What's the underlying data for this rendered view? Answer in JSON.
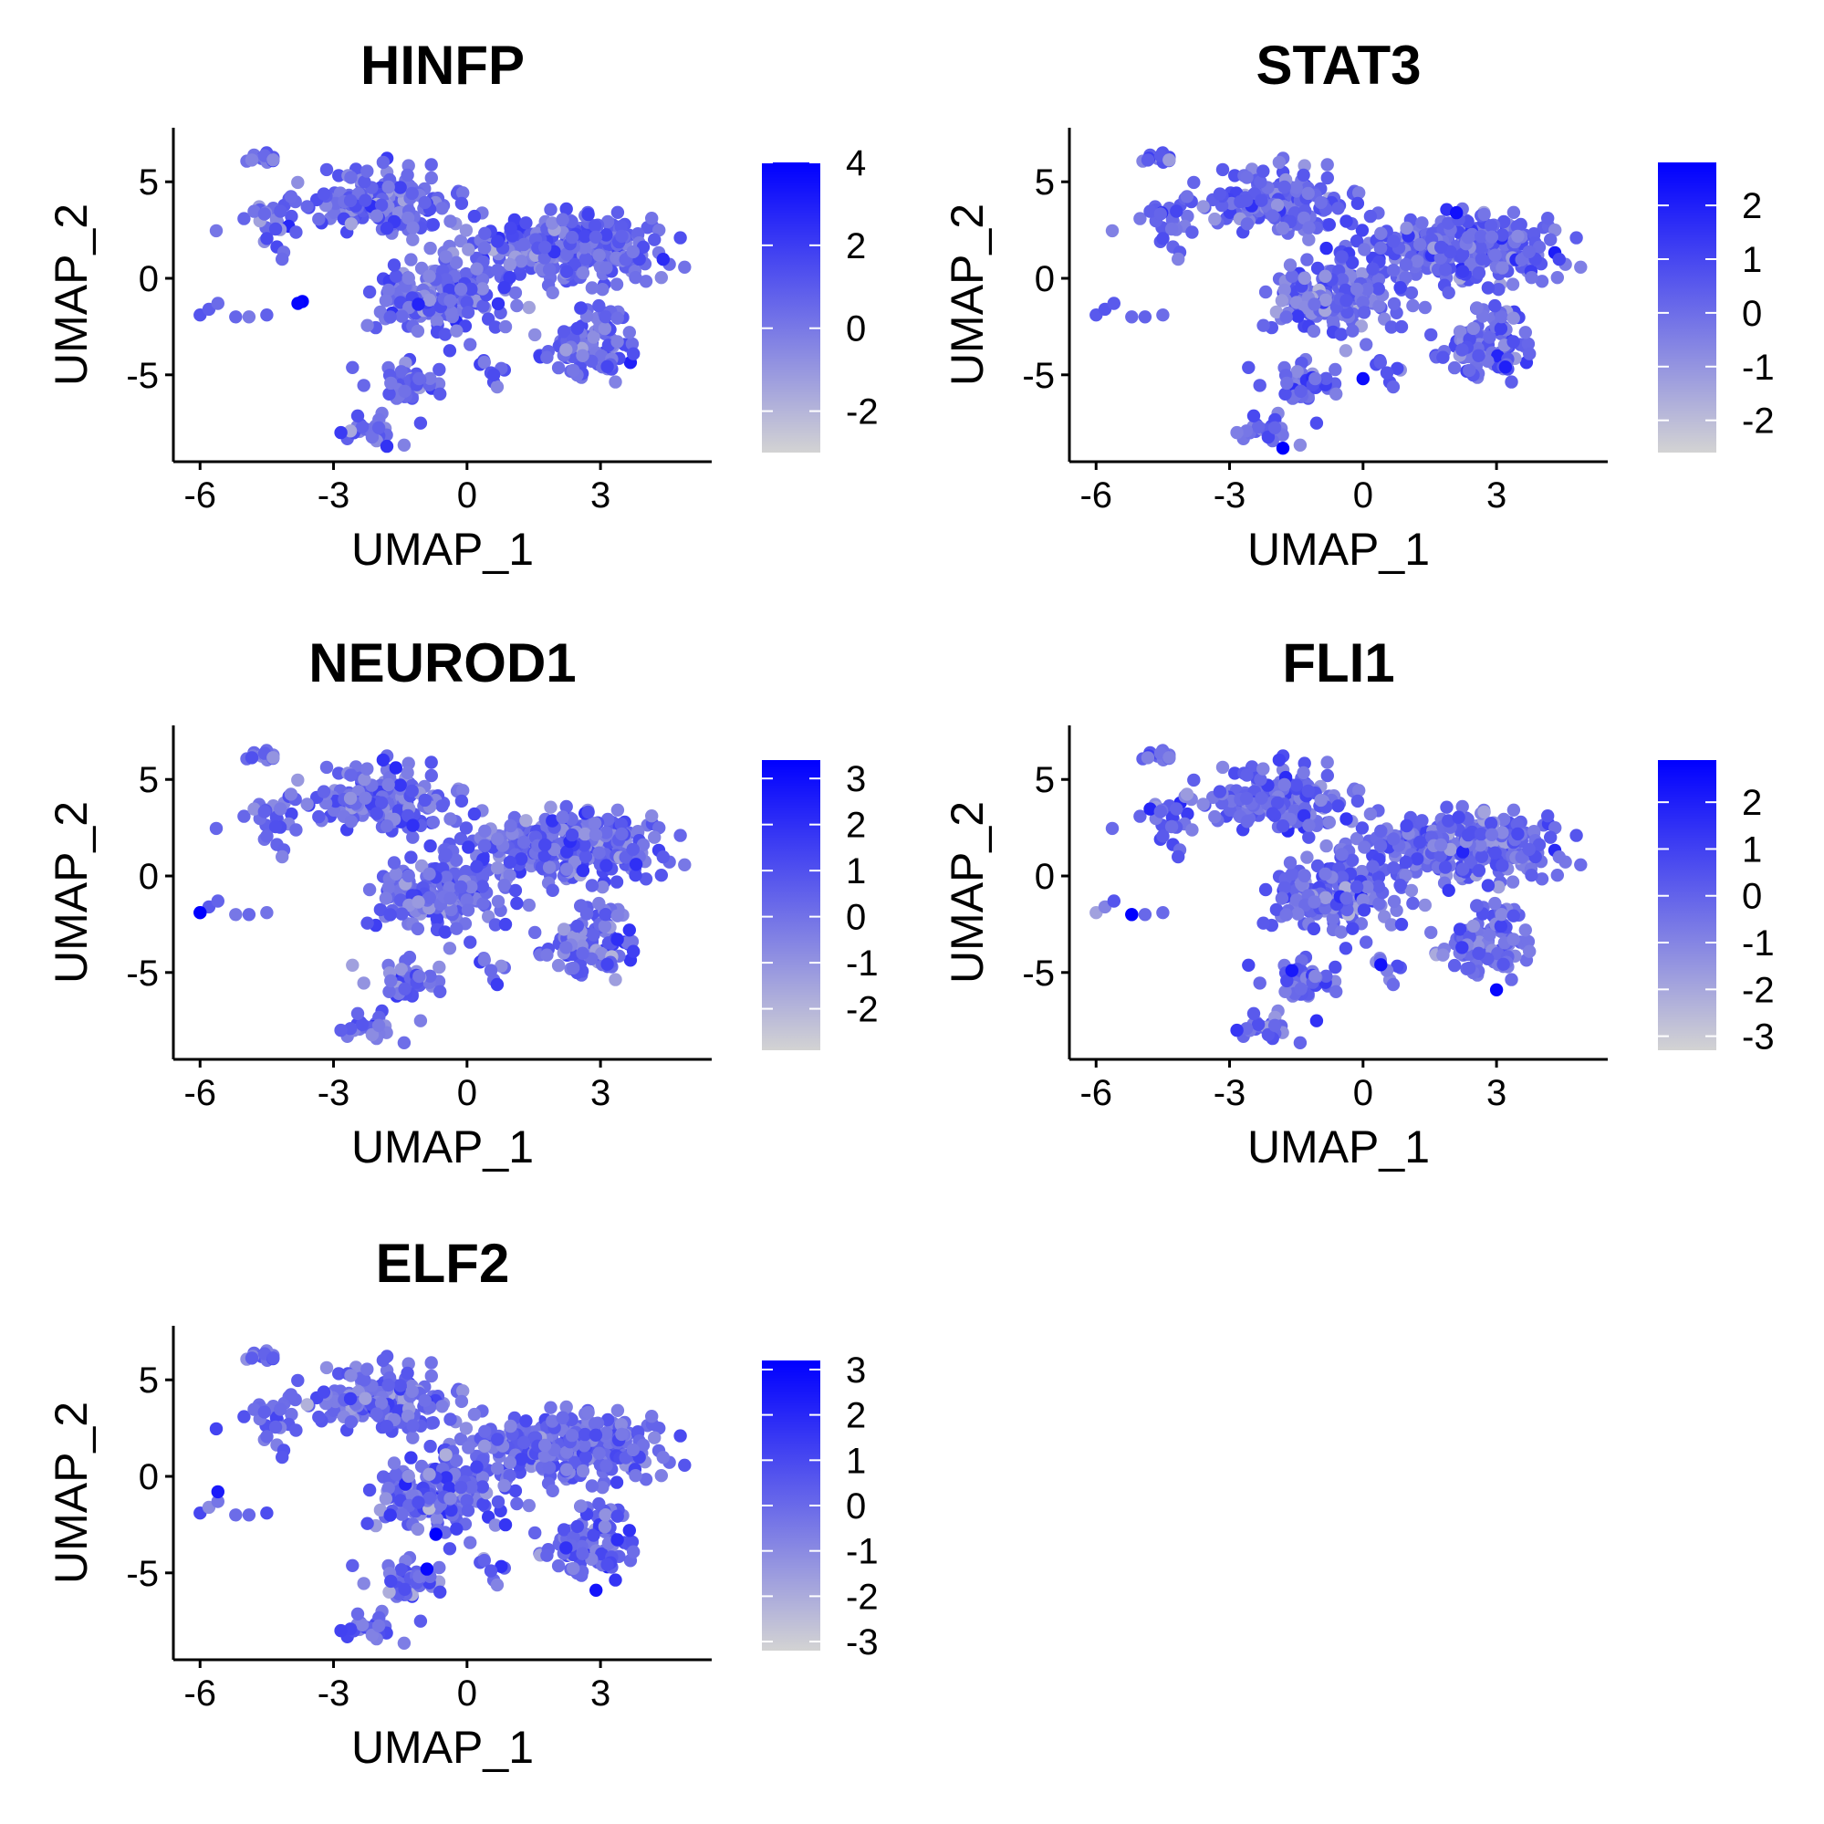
{
  "colors": {
    "low": "#d3d3d3",
    "high": "#0000ff",
    "axis": "#000000"
  },
  "chart_data": [
    {
      "type": "scatter",
      "subtype": "umap-feature-plot",
      "title": "HINFP",
      "xlabel": "UMAP_1",
      "ylabel": "UMAP_2",
      "xlim": [
        -6.6,
        5.5
      ],
      "ylim": [
        -9.5,
        7.8
      ],
      "xticks": [
        -6,
        -3,
        0,
        3
      ],
      "yticks": [
        -5,
        0,
        5
      ],
      "xtick_labels": [
        "-6",
        "-3",
        "0",
        "3"
      ],
      "ytick_labels": [
        "-5",
        "0",
        "5"
      ],
      "color_scale": {
        "min": -3.0,
        "max": 4.0,
        "ticks": [
          4,
          2,
          0,
          -2
        ],
        "tick_labels": [
          "4",
          "2",
          "0",
          "-2"
        ]
      },
      "legend_position": "right",
      "seed": 11,
      "highlights": [
        [
          -3.7,
          -1.2,
          4.0
        ],
        [
          -3.8,
          -1.3,
          3.8
        ],
        [
          -1.8,
          -8.7,
          2.3
        ],
        [
          0.6,
          -5.0,
          1.5
        ]
      ]
    },
    {
      "type": "scatter",
      "subtype": "umap-feature-plot",
      "title": "STAT3",
      "xlabel": "UMAP_1",
      "ylabel": "UMAP_2",
      "xlim": [
        -6.6,
        5.5
      ],
      "ylim": [
        -9.5,
        7.8
      ],
      "xticks": [
        -6,
        -3,
        0,
        3
      ],
      "yticks": [
        -5,
        0,
        5
      ],
      "xtick_labels": [
        "-6",
        "-3",
        "0",
        "3"
      ],
      "ytick_labels": [
        "-5",
        "0",
        "5"
      ],
      "color_scale": {
        "min": -2.6,
        "max": 2.8,
        "ticks": [
          2,
          1,
          0,
          -1,
          -2
        ],
        "tick_labels": [
          "2",
          "1",
          "0",
          "-1",
          "-2"
        ]
      },
      "legend_position": "right",
      "seed": 23,
      "highlights": [
        [
          -1.8,
          -8.8,
          2.8
        ],
        [
          0.0,
          -5.2,
          2.5
        ],
        [
          2.1,
          3.4,
          2.4
        ],
        [
          3.2,
          -4.6,
          2.0
        ]
      ]
    },
    {
      "type": "scatter",
      "subtype": "umap-feature-plot",
      "title": "NEUROD1",
      "xlabel": "UMAP_1",
      "ylabel": "UMAP_2",
      "xlim": [
        -6.6,
        5.5
      ],
      "ylim": [
        -9.5,
        7.8
      ],
      "xticks": [
        -6,
        -3,
        0,
        3
      ],
      "yticks": [
        -5,
        0,
        5
      ],
      "xtick_labels": [
        "-6",
        "-3",
        "0",
        "3"
      ],
      "ytick_labels": [
        "-5",
        "0",
        "5"
      ],
      "color_scale": {
        "min": -2.9,
        "max": 3.4,
        "ticks": [
          3,
          2,
          1,
          0,
          -1,
          -2
        ],
        "tick_labels": [
          "3",
          "2",
          "1",
          "0",
          "-1",
          "-2"
        ]
      },
      "legend_position": "right",
      "seed": 37,
      "highlights": [
        [
          -6.0,
          -1.9,
          3.4
        ],
        [
          -1.6,
          5.6,
          2.2
        ],
        [
          3.8,
          0.6,
          2.0
        ]
      ]
    },
    {
      "type": "scatter",
      "subtype": "umap-feature-plot",
      "title": "FLI1",
      "xlabel": "UMAP_1",
      "ylabel": "UMAP_2",
      "xlim": [
        -6.6,
        5.5
      ],
      "ylim": [
        -9.5,
        7.8
      ],
      "xticks": [
        -6,
        -3,
        0,
        3
      ],
      "yticks": [
        -5,
        0,
        5
      ],
      "xtick_labels": [
        "-6",
        "-3",
        "0",
        "3"
      ],
      "ytick_labels": [
        "-5",
        "0",
        "5"
      ],
      "color_scale": {
        "min": -3.3,
        "max": 2.9,
        "ticks": [
          2,
          1,
          0,
          -1,
          -2,
          -3
        ],
        "tick_labels": [
          "2",
          "1",
          "0",
          "-1",
          "-2",
          "-3"
        ]
      },
      "legend_position": "right",
      "seed": 53,
      "highlights": [
        [
          -5.2,
          -2.0,
          2.9
        ],
        [
          3.0,
          -5.9,
          2.7
        ],
        [
          0.4,
          -4.6,
          2.4
        ],
        [
          -1.6,
          -4.9,
          2.2
        ]
      ]
    },
    {
      "type": "scatter",
      "subtype": "umap-feature-plot",
      "title": "ELF2",
      "xlabel": "UMAP_1",
      "ylabel": "UMAP_2",
      "xlim": [
        -6.6,
        5.5
      ],
      "ylim": [
        -9.5,
        7.8
      ],
      "xticks": [
        -6,
        -3,
        0,
        3
      ],
      "yticks": [
        -5,
        0,
        5
      ],
      "xtick_labels": [
        "-6",
        "-3",
        "0",
        "3"
      ],
      "ytick_labels": [
        "-5",
        "0",
        "5"
      ],
      "color_scale": {
        "min": -3.2,
        "max": 3.2,
        "ticks": [
          3,
          2,
          1,
          0,
          -1,
          -2,
          -3
        ],
        "tick_labels": [
          "3",
          "2",
          "1",
          "0",
          "-1",
          "-2",
          "-3"
        ]
      },
      "legend_position": "right",
      "seed": 71,
      "highlights": [
        [
          -0.7,
          -3.0,
          3.2
        ],
        [
          -0.9,
          -4.8,
          3.0
        ],
        [
          2.9,
          -5.9,
          2.6
        ],
        [
          -5.6,
          -0.8,
          2.4
        ]
      ]
    }
  ]
}
